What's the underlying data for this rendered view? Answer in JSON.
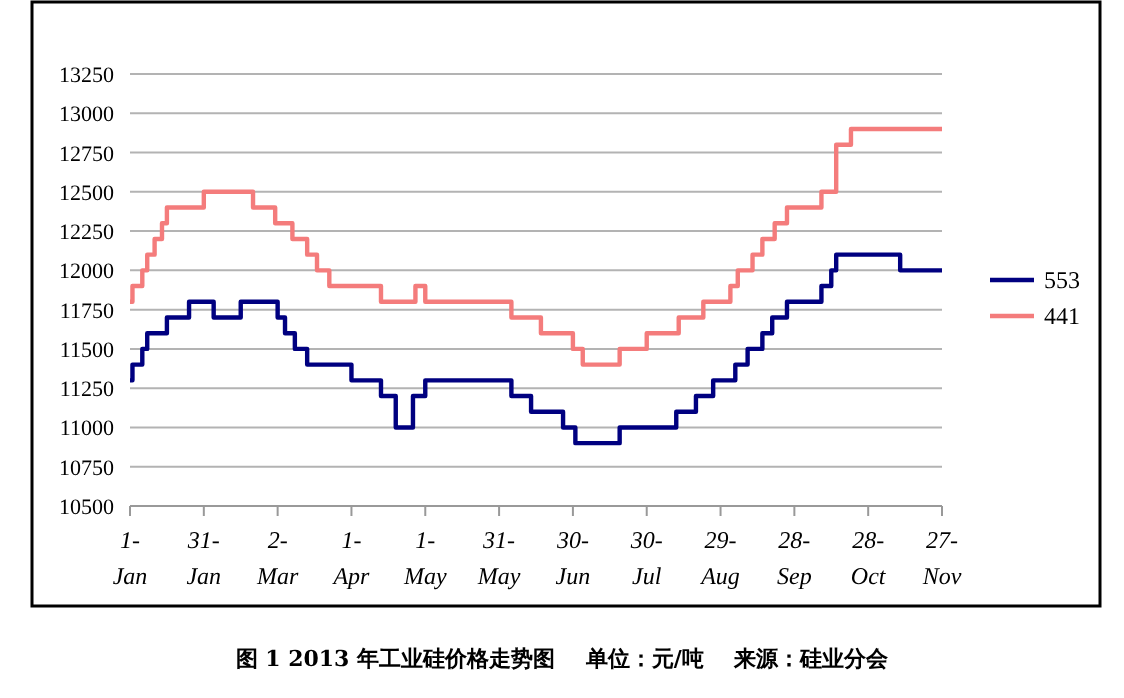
{
  "chart_data": {
    "type": "step",
    "series": [
      {
        "name": "553",
        "color": "#000080",
        "x": [
          "2013-01-01",
          "2013-01-02",
          "2013-01-06",
          "2013-01-08",
          "2013-01-16",
          "2013-01-25",
          "2013-02-04",
          "2013-02-15",
          "2013-03-02",
          "2013-03-05",
          "2013-03-09",
          "2013-03-14",
          "2013-04-01",
          "2013-04-13",
          "2013-04-19",
          "2013-04-26",
          "2013-05-01",
          "2013-06-05",
          "2013-06-13",
          "2013-06-26",
          "2013-07-01",
          "2013-07-19",
          "2013-08-11",
          "2013-08-19",
          "2013-08-26",
          "2013-09-04",
          "2013-09-09",
          "2013-09-15",
          "2013-09-19",
          "2013-09-25",
          "2013-10-09",
          "2013-10-13",
          "2013-10-15",
          "2013-11-10",
          "2013-11-27"
        ],
        "values": [
          11300,
          11400,
          11500,
          11600,
          11700,
          11800,
          11700,
          11800,
          11700,
          11600,
          11500,
          11400,
          11300,
          11200,
          11000,
          11200,
          11300,
          11200,
          11100,
          11000,
          10900,
          11000,
          11100,
          11200,
          11300,
          11400,
          11500,
          11600,
          11700,
          11800,
          11900,
          12000,
          12100,
          12000,
          12000
        ]
      },
      {
        "name": "441",
        "color": "#f47c7c",
        "x": [
          "2013-01-01",
          "2013-01-02",
          "2013-01-06",
          "2013-01-08",
          "2013-01-11",
          "2013-01-14",
          "2013-01-16",
          "2013-01-31",
          "2013-02-20",
          "2013-03-01",
          "2013-03-08",
          "2013-03-14",
          "2013-03-18",
          "2013-03-23",
          "2013-04-13",
          "2013-04-27",
          "2013-05-01",
          "2013-06-05",
          "2013-06-17",
          "2013-06-30",
          "2013-07-04",
          "2013-07-19",
          "2013-07-30",
          "2013-08-12",
          "2013-08-22",
          "2013-09-02",
          "2013-09-05",
          "2013-09-11",
          "2013-09-15",
          "2013-09-20",
          "2013-09-25",
          "2013-10-09",
          "2013-10-15",
          "2013-10-21",
          "2013-11-27"
        ],
        "values": [
          11800,
          11900,
          12000,
          12100,
          12200,
          12300,
          12400,
          12500,
          12400,
          12300,
          12200,
          12100,
          12000,
          11900,
          11800,
          11900,
          11800,
          11700,
          11600,
          11500,
          11400,
          11500,
          11600,
          11700,
          11800,
          11900,
          12000,
          12100,
          12200,
          12300,
          12400,
          12500,
          12800,
          12900,
          12900
        ]
      }
    ],
    "xlim": [
      "2013-01-01",
      "2013-11-27"
    ],
    "xticks": [
      {
        "value": "2013-01-01",
        "label": "1-\nJan"
      },
      {
        "value": "2013-01-31",
        "label": "31-\nJan"
      },
      {
        "value": "2013-03-02",
        "label": "2-\nMar"
      },
      {
        "value": "2013-04-01",
        "label": "1-\nApr"
      },
      {
        "value": "2013-05-01",
        "label": "1-\nMay"
      },
      {
        "value": "2013-05-31",
        "label": "31-\nMay"
      },
      {
        "value": "2013-06-30",
        "label": "30-\nJun"
      },
      {
        "value": "2013-07-30",
        "label": "30-\nJul"
      },
      {
        "value": "2013-08-29",
        "label": "29-\nAug"
      },
      {
        "value": "2013-09-28",
        "label": "28-\nSep"
      },
      {
        "value": "2013-10-28",
        "label": "28-\nOct"
      },
      {
        "value": "2013-11-27",
        "label": "27-\nNov"
      }
    ],
    "ylim": [
      10500,
      13250
    ],
    "yticks": [
      10500,
      10750,
      11000,
      11250,
      11500,
      11750,
      12000,
      12250,
      12500,
      12750,
      13000,
      13250
    ],
    "grid": "y",
    "legend": "right",
    "line_style": "solid",
    "marker": "none",
    "annotations": [
      "图 1 2013 年工业硅价格走势图    单位：元/吨    来源：硅业分会"
    ]
  }
}
